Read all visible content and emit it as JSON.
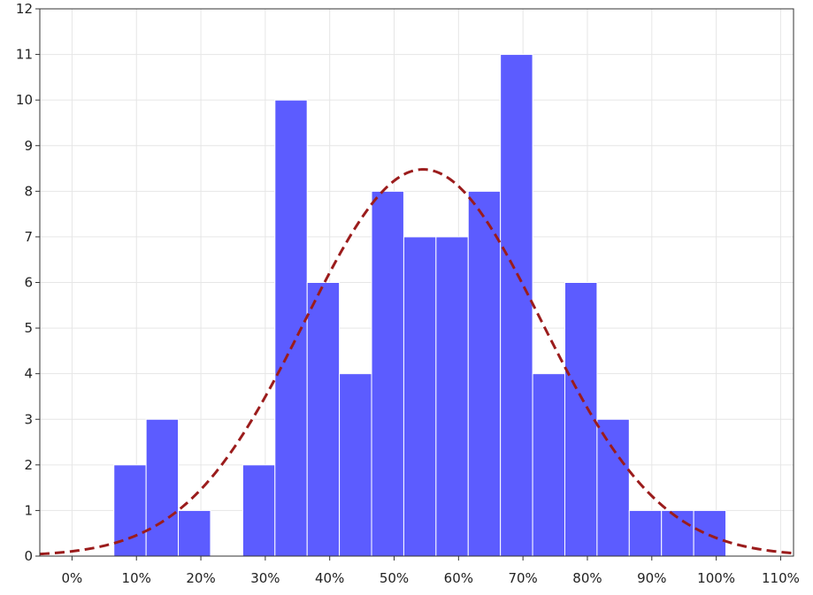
{
  "chart_data": {
    "type": "bar",
    "subtype": "histogram",
    "title": "",
    "xlabel": "",
    "ylabel": "",
    "bin_width_percent": 5,
    "xlim_percent": [
      -5,
      112
    ],
    "ylim": [
      0,
      12
    ],
    "grid": true,
    "legend": "none",
    "x_ticks": [
      {
        "value": 0,
        "label": "0%"
      },
      {
        "value": 10,
        "label": "10%"
      },
      {
        "value": 20,
        "label": "20%"
      },
      {
        "value": 30,
        "label": "30%"
      },
      {
        "value": 40,
        "label": "40%"
      },
      {
        "value": 50,
        "label": "50%"
      },
      {
        "value": 60,
        "label": "60%"
      },
      {
        "value": 70,
        "label": "70%"
      },
      {
        "value": 80,
        "label": "80%"
      },
      {
        "value": 90,
        "label": "90%"
      },
      {
        "value": 100,
        "label": "100%"
      },
      {
        "value": 110,
        "label": "110%"
      }
    ],
    "y_ticks": [
      {
        "value": 0,
        "label": "0"
      },
      {
        "value": 1,
        "label": "1"
      },
      {
        "value": 2,
        "label": "2"
      },
      {
        "value": 3,
        "label": "3"
      },
      {
        "value": 4,
        "label": "4"
      },
      {
        "value": 5,
        "label": "5"
      },
      {
        "value": 6,
        "label": "6"
      },
      {
        "value": 7,
        "label": "7"
      },
      {
        "value": 8,
        "label": "8"
      },
      {
        "value": 9,
        "label": "9"
      },
      {
        "value": 10,
        "label": "10"
      },
      {
        "value": 11,
        "label": "11"
      },
      {
        "value": 12,
        "label": "12"
      }
    ],
    "bins": [
      {
        "start": 6.5,
        "end": 11.5,
        "count": 2
      },
      {
        "start": 11.5,
        "end": 16.5,
        "count": 3
      },
      {
        "start": 16.5,
        "end": 21.5,
        "count": 1
      },
      {
        "start": 26.5,
        "end": 31.5,
        "count": 2
      },
      {
        "start": 31.5,
        "end": 36.5,
        "count": 10
      },
      {
        "start": 36.5,
        "end": 41.5,
        "count": 6
      },
      {
        "start": 41.5,
        "end": 46.5,
        "count": 4
      },
      {
        "start": 46.5,
        "end": 51.5,
        "count": 8
      },
      {
        "start": 51.5,
        "end": 56.5,
        "count": 7
      },
      {
        "start": 56.5,
        "end": 61.5,
        "count": 7
      },
      {
        "start": 61.5,
        "end": 66.5,
        "count": 8
      },
      {
        "start": 66.5,
        "end": 71.5,
        "count": 11
      },
      {
        "start": 71.5,
        "end": 76.5,
        "count": 4
      },
      {
        "start": 76.5,
        "end": 81.5,
        "count": 6
      },
      {
        "start": 81.5,
        "end": 86.5,
        "count": 3
      },
      {
        "start": 86.5,
        "end": 91.5,
        "count": 1
      },
      {
        "start": 91.5,
        "end": 96.5,
        "count": 1
      },
      {
        "start": 96.5,
        "end": 101.5,
        "count": 1
      }
    ],
    "normal_curve": {
      "mean_percent": 54.5,
      "sd_percent": 18.4,
      "peak_count": 8.48,
      "style": "dashed"
    },
    "colors": {
      "bar_fill": "#5c5cff",
      "bar_edge": "#ffffff",
      "curve": "#9b1c1c",
      "grid": "#e6e6e6",
      "axis": "#333333"
    }
  }
}
